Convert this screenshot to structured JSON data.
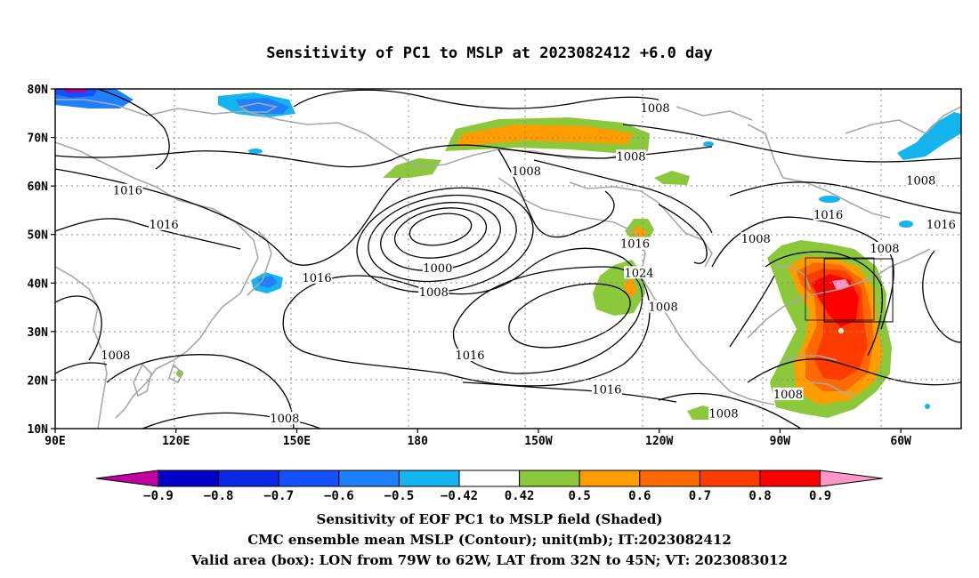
{
  "title": "Sensitivity of PC1 to MSLP at 2023082412 +6.0 day",
  "map": {
    "lat_labels": [
      "80N",
      "70N",
      "60N",
      "50N",
      "40N",
      "30N",
      "20N",
      "10N"
    ],
    "lon_labels": [
      "90E",
      "120E",
      "150E",
      "180",
      "150W",
      "120W",
      "90W",
      "60W"
    ],
    "contour_labels": [
      {
        "text": "1008",
        "lon": -121,
        "lat": 76
      },
      {
        "text": "1008",
        "lon": -153,
        "lat": 63
      },
      {
        "text": "1008",
        "lon": -127,
        "lat": 66
      },
      {
        "text": "1008",
        "lon": -55,
        "lat": 61
      },
      {
        "text": "1016",
        "lon": 108,
        "lat": 59
      },
      {
        "text": "1016",
        "lon": 117,
        "lat": 52
      },
      {
        "text": "1016",
        "lon": -126,
        "lat": 48
      },
      {
        "text": "1016",
        "lon": -78,
        "lat": 54
      },
      {
        "text": "1016",
        "lon": -50,
        "lat": 52
      },
      {
        "text": "1008",
        "lon": -96,
        "lat": 49
      },
      {
        "text": "1008",
        "lon": -64,
        "lat": 47
      },
      {
        "text": "1000",
        "lon": -175,
        "lat": 43
      },
      {
        "text": "1008",
        "lon": -176,
        "lat": 38
      },
      {
        "text": "1016",
        "lon": 155,
        "lat": 41
      },
      {
        "text": "1024",
        "lon": -125,
        "lat": 42
      },
      {
        "text": "1008",
        "lon": -119,
        "lat": 35
      },
      {
        "text": "1016",
        "lon": -167,
        "lat": 25
      },
      {
        "text": "1016",
        "lon": -133,
        "lat": 18
      },
      {
        "text": "1008",
        "lon": -88,
        "lat": 17
      },
      {
        "text": "1008",
        "lon": -104,
        "lat": 13
      },
      {
        "text": "1008",
        "lon": 105,
        "lat": 25
      },
      {
        "text": "1008",
        "lon": 147,
        "lat": 12
      }
    ],
    "valid_box": {
      "lon_min": -79,
      "lon_max": -62,
      "lat_min": 32,
      "lat_max": 45
    }
  },
  "colorbar": {
    "labels": [
      "-0.9",
      "-0.8",
      "-0.7",
      "-0.6",
      "-0.5",
      "-0.42",
      "0.42",
      "0.5",
      "0.6",
      "0.7",
      "0.8",
      "0.9"
    ],
    "colors": [
      "#c000a0",
      "#0000c8",
      "#0a28e6",
      "#1450ff",
      "#1e80ff",
      "#14b4f0",
      "#ffffff",
      "#8cc83c",
      "#ff9c00",
      "#ff6a00",
      "#ff3c00",
      "#ff0000",
      "#ff96c8"
    ]
  },
  "captions": {
    "line1": "Sensitivity of EOF PC1 to MSLP field (Shaded)",
    "line2": "CMC ensemble mean MSLP (Contour); unit(mb); IT:2023082412",
    "line3": "Valid area (box): LON from 79W to 62W, LAT from 32N to 45N; VT: 2023083012"
  }
}
